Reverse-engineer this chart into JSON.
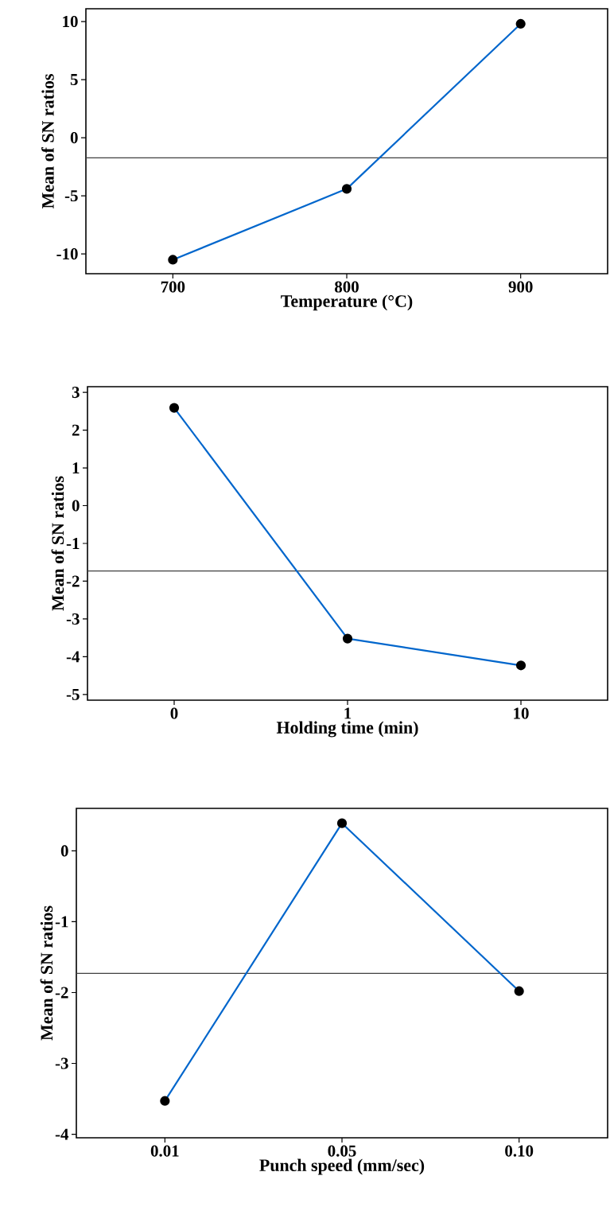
{
  "chart_data": [
    {
      "type": "line",
      "xlabel": "Temperature (°C)",
      "ylabel": "Mean of SN ratios",
      "x": [
        700,
        800,
        900
      ],
      "series": [
        {
          "color": "#0066cc",
          "values": [
            -10.5,
            -4.4,
            9.8
          ]
        }
      ],
      "xlim": [
        650,
        950
      ],
      "xticks": [
        700,
        800,
        900
      ],
      "ylim": [
        -11.7,
        11.1
      ],
      "yticks": [
        -10,
        -5,
        0,
        5,
        10
      ],
      "ref_lines": [
        {
          "axis": "y",
          "value": -1.73,
          "color": "#404040"
        }
      ],
      "marker": "circle"
    },
    {
      "type": "line",
      "xlabel": "Holding time (min)",
      "ylabel": "Mean of SN ratios",
      "categories": [
        "0",
        "1",
        "10"
      ],
      "series": [
        {
          "color": "#0066cc",
          "values": [
            2.59,
            -3.52,
            -4.23
          ]
        }
      ],
      "ylim": [
        -5.15,
        3.15
      ],
      "yticks": [
        -5,
        -4,
        -3,
        -2,
        -1,
        0,
        1,
        2,
        3
      ],
      "ref_lines": [
        {
          "axis": "y",
          "value": -1.73,
          "color": "#404040"
        }
      ],
      "marker": "circle"
    },
    {
      "type": "line",
      "xlabel": "Punch speed (mm/sec)",
      "ylabel": "Mean of SN ratios",
      "categories": [
        "0.01",
        "0.05",
        "0.10"
      ],
      "series": [
        {
          "color": "#0066cc",
          "values": [
            -3.53,
            0.39,
            -1.98
          ]
        }
      ],
      "ylim": [
        -4.05,
        0.6
      ],
      "yticks": [
        -4,
        -3,
        -2,
        -1,
        0
      ],
      "ref_lines": [
        {
          "axis": "y",
          "value": -1.73,
          "color": "#404040"
        }
      ],
      "marker": "circle"
    }
  ]
}
